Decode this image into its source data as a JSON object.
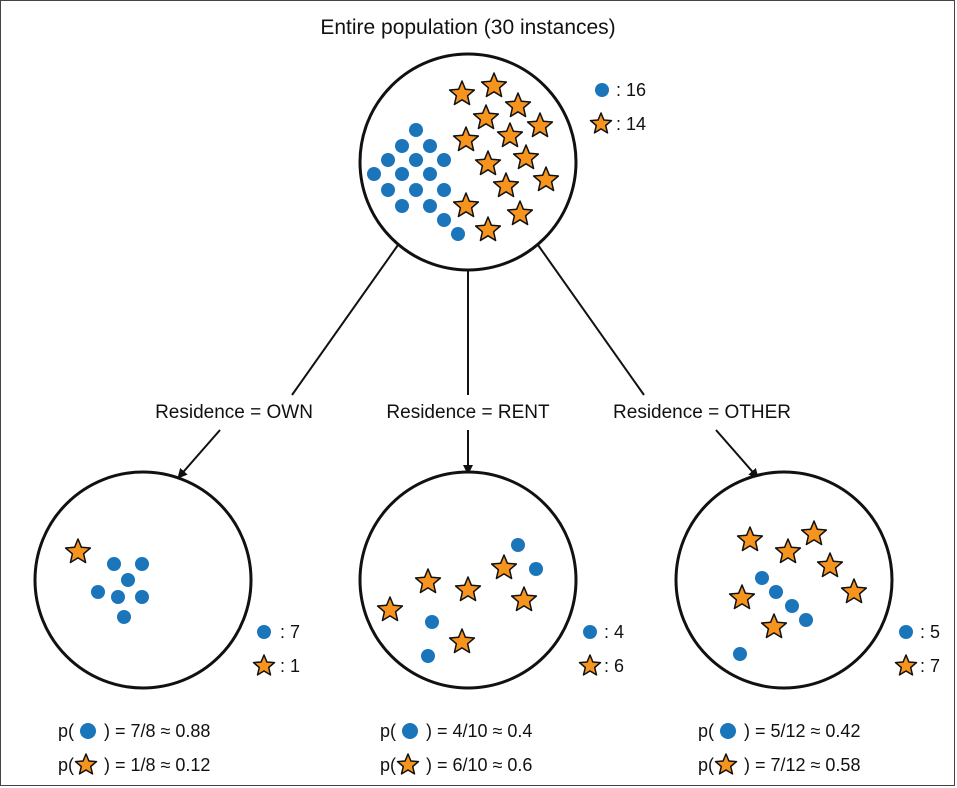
{
  "title": "Entire population (30 instances)",
  "colors": {
    "dot": "#1b75bb",
    "star": "#f7941d",
    "stroke": "#111111"
  },
  "symbols": {
    "dot": "blue-dot",
    "star": "orange-star"
  },
  "root": {
    "dot_count": ": 16",
    "star_count": ": 14"
  },
  "branches": [
    {
      "label": "Residence = OWN",
      "dot_count": ": 7",
      "star_count": ": 1",
      "p_dot_prefix": "p(",
      "p_dot_value": ") = 7/8 ≈ 0.88",
      "p_star_prefix": "p(",
      "p_star_value": ") = 1/8 ≈ 0.12"
    },
    {
      "label": "Residence = RENT",
      "dot_count": ": 4",
      "star_count": ": 6",
      "p_dot_prefix": "p(",
      "p_dot_value": ") = 4/10 ≈ 0.4",
      "p_star_prefix": "p(",
      "p_star_value": ") = 6/10 ≈ 0.6"
    },
    {
      "label": "Residence = OTHER",
      "dot_count": ": 5",
      "star_count": ": 7",
      "p_dot_prefix": "p(",
      "p_dot_value": ") = 5/12 ≈ 0.42",
      "p_star_prefix": "p(",
      "p_star_value": ") = 7/12 ≈ 0.58"
    }
  ]
}
